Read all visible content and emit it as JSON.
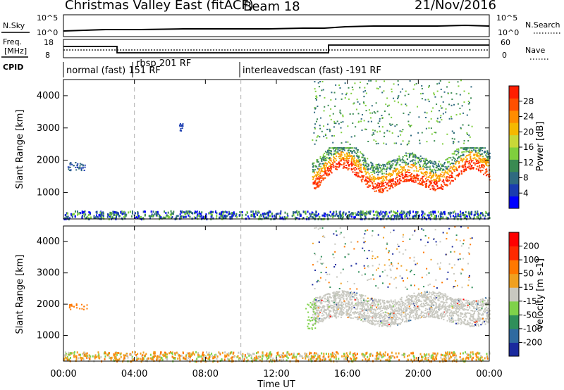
{
  "header": {
    "title": "Christmas Valley East (fitACF)",
    "beam": "Beam 18",
    "date": "21/Nov/2016"
  },
  "top_panels": {
    "nsky_label": "N.Sky",
    "nsky_ticks": [
      "10^5",
      "10^0"
    ],
    "nsearch_label": "N.Search",
    "nsearch_ticks": [
      "10^5",
      "10^0"
    ],
    "freq_label": "Freq.",
    "freq_unit": "[MHz]",
    "freq_ticks": [
      "18",
      "8"
    ],
    "nave_label": "Nave",
    "nave_ticks": [
      "60",
      "0"
    ],
    "cpid_label": "CPID",
    "cpid_segments": [
      "normal (fast) 151 RF",
      "rbsp 201 RF",
      "interleavedscan (fast) -191 RF"
    ],
    "cpid_times_hours": [
      0,
      4,
      10
    ]
  },
  "chart_data": [
    {
      "type": "heatmap",
      "xlabel": "",
      "ylabel": "Slant Range [km]",
      "xlim_hours": [
        0,
        24
      ],
      "ylim": [
        180,
        4500
      ],
      "yticks": [
        "1000",
        "2000",
        "3000",
        "4000"
      ],
      "colorbar": {
        "label": "Power [dB]",
        "ticks": [
          "4",
          "8",
          "12",
          "16",
          "20",
          "24",
          "28"
        ],
        "range": [
          0,
          32
        ],
        "colors": [
          "#0000ff",
          "#1a3cb0",
          "#2f6a80",
          "#3a8a52",
          "#7fcf3d",
          "#c8d838",
          "#f5b800",
          "#ff8c00",
          "#ff5000",
          "#ff1e00"
        ]
      },
      "features": [
        {
          "description": "Near-range ground scatter band",
          "x_hours": [
            0,
            24
          ],
          "slant_range_km": [
            200,
            400
          ]
        },
        {
          "description": "Strong scatter band",
          "x_hours": [
            14,
            24
          ],
          "slant_range_km": [
            1200,
            2400
          ]
        },
        {
          "description": "Sporadic far-range scatter",
          "x_hours": [
            13,
            23
          ],
          "slant_range_km": [
            2400,
            4500
          ]
        }
      ]
    },
    {
      "type": "heatmap",
      "xlabel": "Time UT",
      "ylabel": "Slant Range [km]",
      "xlim_hours": [
        0,
        24
      ],
      "ylim": [
        180,
        4500
      ],
      "xticks": [
        "00:00",
        "04:00",
        "08:00",
        "12:00",
        "16:00",
        "20:00",
        "00:00"
      ],
      "yticks": [
        "1000",
        "2000",
        "3000",
        "4000"
      ],
      "colorbar": {
        "label": "Velocity [m s-1]",
        "ticks": [
          "200",
          "100",
          "50",
          "15",
          "-15",
          "-50",
          "-100",
          "-200"
        ],
        "colors": [
          "#1a2a9e",
          "#2f6aa0",
          "#2f8f5a",
          "#7fd24a",
          "#c8c8c0",
          "#f0a020",
          "#ff7800",
          "#ff2a00",
          "#ff0000"
        ]
      },
      "features": [
        {
          "description": "Ground scatter (grey) band",
          "x_hours": [
            14,
            24
          ],
          "slant_range_km": [
            1400,
            2400
          ]
        },
        {
          "description": "Low-velocity near-range echoes",
          "x_hours": [
            0,
            24
          ],
          "slant_range_km": [
            200,
            500
          ]
        }
      ]
    }
  ]
}
